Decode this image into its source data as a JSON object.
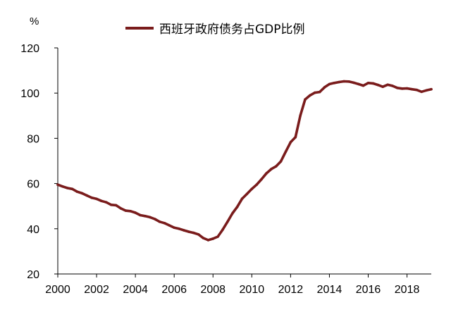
{
  "chart_data": {
    "type": "line",
    "y_unit": "%",
    "ylim": [
      20,
      120
    ],
    "yticks": [
      20,
      40,
      60,
      80,
      100,
      120
    ],
    "xlim": [
      2000,
      2019.25
    ],
    "xticks": [
      "2000",
      "2002",
      "2004",
      "2006",
      "2008",
      "2010",
      "2012",
      "2014",
      "2016",
      "2018"
    ],
    "grid": false,
    "legend_position": "top-center",
    "color": "#7a1c1c",
    "series": [
      {
        "name": "西班牙政府债务占GDP比例",
        "x": [
          2000,
          2000.25,
          2000.5,
          2000.75,
          2001,
          2001.25,
          2001.5,
          2001.75,
          2002,
          2002.25,
          2002.5,
          2002.75,
          2003,
          2003.25,
          2003.5,
          2003.75,
          2004,
          2004.25,
          2004.5,
          2004.75,
          2005,
          2005.25,
          2005.5,
          2005.75,
          2006,
          2006.25,
          2006.5,
          2006.75,
          2007,
          2007.25,
          2007.5,
          2007.75,
          2008,
          2008.25,
          2008.5,
          2008.75,
          2009,
          2009.25,
          2009.5,
          2009.75,
          2010,
          2010.25,
          2010.5,
          2010.75,
          2011,
          2011.25,
          2011.5,
          2011.75,
          2012,
          2012.25,
          2012.5,
          2012.75,
          2013,
          2013.25,
          2013.5,
          2013.75,
          2014,
          2014.25,
          2014.5,
          2014.75,
          2015,
          2015.25,
          2015.5,
          2015.75,
          2016,
          2016.25,
          2016.5,
          2016.75,
          2017,
          2017.25,
          2017.5,
          2017.75,
          2018,
          2018.25,
          2018.5,
          2018.75,
          2019,
          2019.25
        ],
        "values": [
          59.5,
          58.7,
          58.0,
          57.6,
          56.4,
          55.7,
          54.7,
          53.7,
          53.2,
          52.3,
          51.7,
          50.6,
          50.4,
          49.0,
          48.0,
          47.8,
          47.1,
          46.0,
          45.6,
          45.1,
          44.3,
          43.1,
          42.5,
          41.5,
          40.5,
          40.0,
          39.3,
          38.7,
          38.2,
          37.5,
          35.9,
          35.0,
          35.6,
          36.5,
          39.6,
          43.1,
          46.8,
          49.7,
          53.3,
          55.4,
          57.6,
          59.5,
          61.9,
          64.5,
          66.4,
          67.6,
          69.8,
          74.1,
          78.3,
          80.5,
          90.1,
          97.2,
          99.0,
          100.2,
          100.5,
          102.6,
          104.0,
          104.5,
          104.9,
          105.2,
          105.1,
          104.6,
          104.0,
          103.3,
          104.5,
          104.3,
          103.6,
          102.8,
          103.7,
          103.2,
          102.3,
          102.0,
          102.1,
          101.7,
          101.4,
          100.6,
          101.2,
          101.7
        ]
      }
    ]
  }
}
